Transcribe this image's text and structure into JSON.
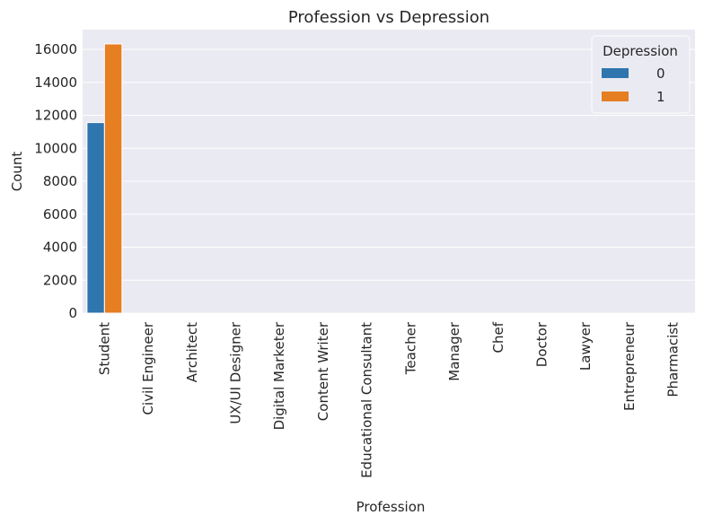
{
  "chart_data": {
    "type": "bar",
    "title": "Profession vs Depression",
    "xlabel": "Profession",
    "ylabel": "Count",
    "categories": [
      "Student",
      "Civil Engineer",
      "Architect",
      "UX/UI Designer",
      "Digital Marketer",
      "Content Writer",
      "Educational Consultant",
      "Teacher",
      "Manager",
      "Chef",
      "Doctor",
      "Lawyer",
      "Entrepreneur",
      "Pharmacist"
    ],
    "series": [
      {
        "name": "0",
        "color": "#2f75ae",
        "values": [
          11560,
          0,
          0,
          0,
          0,
          0,
          0,
          0,
          0,
          0,
          0,
          0,
          0,
          0
        ]
      },
      {
        "name": "1",
        "color": "#e67e22",
        "values": [
          16330,
          0,
          0,
          0,
          0,
          0,
          0,
          0,
          0,
          0,
          0,
          0,
          0,
          0
        ]
      }
    ],
    "yticks": [
      0,
      2000,
      4000,
      6000,
      8000,
      10000,
      12000,
      14000,
      16000
    ],
    "ylim": [
      0,
      17200
    ],
    "grid": true,
    "legend": {
      "title": "Depression",
      "placement": "top-right"
    },
    "background": "#eaeaf2"
  }
}
